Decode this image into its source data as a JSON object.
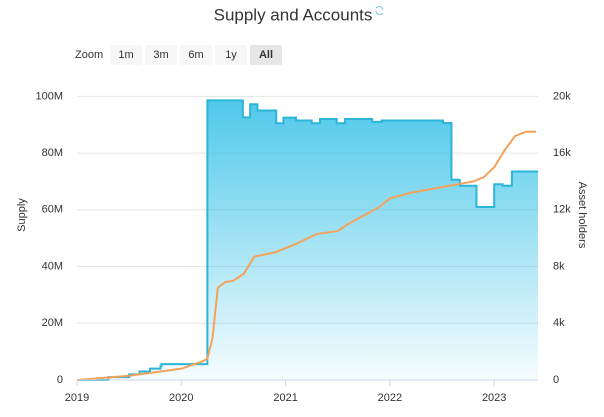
{
  "chart_data": {
    "type": "step-line",
    "title": "Supply and Accounts",
    "zoom": {
      "label": "Zoom",
      "buttons": [
        "1m",
        "3m",
        "6m",
        "1y",
        "All"
      ],
      "selected": 4
    },
    "x": [
      2019.0,
      2019.3,
      2019.5,
      2019.6,
      2019.7,
      2019.8,
      2019.81,
      2020.25,
      2020.59,
      2020.66,
      2020.73,
      2020.91,
      2020.98,
      2021.1,
      2021.25,
      2021.33,
      2021.49,
      2021.57,
      2021.83,
      2021.92,
      2022.51,
      2022.59,
      2022.67,
      2022.83,
      2023.0,
      2023.08,
      2023.17,
      2023.42
    ],
    "series": [
      {
        "name": "Supply",
        "color": "#2bb5d8",
        "axis": "y",
        "step": true,
        "values": [
          0,
          1000000,
          2000000,
          3000000,
          4000000,
          5000000,
          5600000,
          98600000,
          92600000,
          97200000,
          95000000,
          90500000,
          92500000,
          91500000,
          90500000,
          92000000,
          90500000,
          92000000,
          91000000,
          91500000,
          90600000,
          70600000,
          68500000,
          61000000,
          69000000,
          68500000,
          73500000,
          73500000
        ]
      },
      {
        "name": "Asset holders",
        "color": "#f4a259",
        "axis": "y2",
        "x": [
          2019.0,
          2019.5,
          2019.8,
          2020.0,
          2020.2,
          2020.25,
          2020.3,
          2020.35,
          2020.42,
          2020.5,
          2020.6,
          2020.7,
          2020.9,
          2021.1,
          2021.3,
          2021.5,
          2021.6,
          2021.75,
          2021.9,
          2022.0,
          2022.2,
          2022.5,
          2022.8,
          2022.9,
          2023.0,
          2023.1,
          2023.2,
          2023.3,
          2023.4
        ],
        "values": [
          0,
          300,
          600,
          800,
          1300,
          1500,
          3000,
          6500,
          6900,
          7000,
          7500,
          8700,
          9000,
          9600,
          10300,
          10500,
          11000,
          11600,
          12200,
          12800,
          13200,
          13600,
          14000,
          14300,
          15000,
          16200,
          17200,
          17500,
          17500
        ]
      }
    ],
    "y_label": "Supply",
    "y2_label": "Asset holders",
    "xlim": [
      2019,
      2023.42
    ],
    "xticks": [
      2019,
      2020,
      2021,
      2022,
      2023
    ],
    "ylim": [
      0,
      104000000
    ],
    "yticks": [
      {
        "value": 0,
        "label": "0"
      },
      {
        "value": 20000000,
        "label": "20M"
      },
      {
        "value": 40000000,
        "label": "40M"
      },
      {
        "value": 60000000,
        "label": "60M"
      },
      {
        "value": 80000000,
        "label": "80M"
      },
      {
        "value": 100000000,
        "label": "100M"
      }
    ],
    "y2lim": [
      0,
      20800
    ],
    "y2ticks": [
      {
        "value": 0,
        "label": "0"
      },
      {
        "value": 4000,
        "label": "4k"
      },
      {
        "value": 8000,
        "label": "8k"
      },
      {
        "value": 12000,
        "label": "12k"
      },
      {
        "value": 16000,
        "label": "16k"
      },
      {
        "value": 20000,
        "label": "20k"
      }
    ],
    "grid": true
  }
}
